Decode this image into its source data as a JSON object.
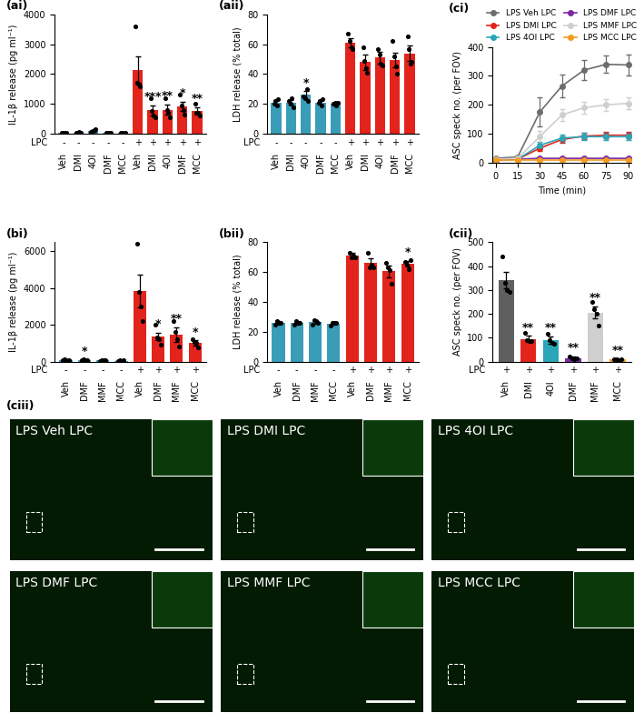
{
  "chart_data": [
    {
      "type": "bar",
      "title": "(ai)",
      "y_label": "IL-1β release (pg ml⁻¹)",
      "categories": [
        "Veh",
        "DMI",
        "4OI",
        "DMF",
        "MCC",
        "Veh",
        "DMI",
        "4OI",
        "DMF",
        "MCC"
      ],
      "row_label": "LPC",
      "row_values": [
        "-",
        "-",
        "-",
        "-",
        "-",
        "+",
        "+",
        "+",
        "+",
        "+"
      ],
      "values": [
        30,
        40,
        100,
        30,
        20,
        2150,
        780,
        800,
        920,
        760
      ],
      "errors": [
        5,
        5,
        25,
        5,
        5,
        450,
        170,
        170,
        160,
        120
      ],
      "points": [
        [
          20,
          30,
          40,
          35
        ],
        [
          30,
          40,
          50,
          45
        ],
        [
          60,
          80,
          120,
          150
        ],
        [
          20,
          30,
          40,
          35
        ],
        [
          20,
          25,
          15,
          30
        ],
        [
          3600,
          1700,
          1650,
          1600
        ],
        [
          1200,
          750,
          600,
          550
        ],
        [
          1200,
          800,
          700,
          550
        ],
        [
          1300,
          950,
          800,
          650
        ],
        [
          1000,
          700,
          700,
          600
        ]
      ],
      "annotations": [
        null,
        null,
        null,
        null,
        null,
        null,
        "***",
        "**",
        "*",
        "**"
      ],
      "colors": [
        "#3a9db8",
        "#3a9db8",
        "#3a9db8",
        "#3a9db8",
        "#3a9db8",
        "#e3241c",
        "#e3241c",
        "#e3241c",
        "#e3241c",
        "#e3241c"
      ],
      "ylim": [
        0,
        4000
      ],
      "yticks": [
        0,
        1000,
        2000,
        3000,
        4000
      ]
    },
    {
      "type": "bar",
      "title": "(aii)",
      "y_label": "LDH release (% total)",
      "categories": [
        "Veh",
        "DMI",
        "4OI",
        "DMF",
        "MCC",
        "Veh",
        "DMI",
        "4OI",
        "DMF",
        "MCC"
      ],
      "row_label": "LPC",
      "row_values": [
        "-",
        "-",
        "-",
        "-",
        "-",
        "+",
        "+",
        "+",
        "+",
        "+"
      ],
      "values": [
        21,
        21,
        26,
        21,
        20,
        61,
        48,
        51,
        49.5,
        54
      ],
      "errors": [
        1.5,
        1.5,
        2.5,
        1.5,
        1,
        3,
        5,
        4,
        5,
        5
      ],
      "points": [
        [
          20,
          22,
          19,
          23
        ],
        [
          22,
          20,
          24,
          18
        ],
        [
          25,
          24,
          30,
          22
        ],
        [
          21,
          22,
          19,
          23
        ],
        [
          20,
          21,
          19,
          21
        ],
        [
          67,
          62,
          58,
          57
        ],
        [
          58,
          49,
          44,
          41
        ],
        [
          57,
          53,
          47,
          46
        ],
        [
          62,
          52,
          45,
          40
        ],
        [
          65,
          57,
          47,
          48
        ]
      ],
      "annotations": [
        null,
        null,
        "*",
        null,
        null,
        null,
        null,
        null,
        null,
        null
      ],
      "colors": [
        "#3a9db8",
        "#3a9db8",
        "#3a9db8",
        "#3a9db8",
        "#3a9db8",
        "#e3241c",
        "#e3241c",
        "#e3241c",
        "#e3241c",
        "#e3241c"
      ],
      "ylim": [
        0,
        80
      ],
      "yticks": [
        0,
        20,
        40,
        60,
        80
      ]
    },
    {
      "type": "line",
      "title": "(ci)",
      "x_label": "Time (min)",
      "y_label": "ASC speck no. (per FOV)",
      "x": [
        0,
        15,
        30,
        45,
        60,
        75,
        90
      ],
      "legend": "top",
      "marker": "o",
      "series": [
        {
          "name": "LPS Veh LPC",
          "color": "#6d6d6d",
          "values": [
            15,
            20,
            175,
            265,
            320,
            340,
            338
          ],
          "errors": [
            5,
            5,
            50,
            40,
            35,
            30,
            35
          ]
        },
        {
          "name": "LPS DMI LPC",
          "color": "#e3241c",
          "values": [
            10,
            12,
            50,
            80,
            92,
            95,
            95
          ],
          "errors": [
            3,
            3,
            10,
            10,
            12,
            12,
            12
          ]
        },
        {
          "name": "LPS 4OI LPC",
          "color": "#2aa6b8",
          "values": [
            10,
            12,
            60,
            85,
            90,
            90,
            90
          ],
          "errors": [
            3,
            3,
            12,
            12,
            12,
            12,
            12
          ]
        },
        {
          "name": "LPS DMF LPC",
          "color": "#7b2aa6",
          "values": [
            10,
            12,
            15,
            15,
            15,
            15,
            15
          ],
          "errors": [
            2,
            2,
            3,
            3,
            3,
            3,
            3
          ]
        },
        {
          "name": "LPS MMF LPC",
          "color": "#cfcfcf",
          "values": [
            12,
            15,
            90,
            165,
            190,
            200,
            205
          ],
          "errors": [
            3,
            3,
            20,
            20,
            20,
            20,
            20
          ]
        },
        {
          "name": "LPS MCC LPC",
          "color": "#f39c20",
          "values": [
            10,
            10,
            10,
            10,
            10,
            10,
            10
          ],
          "errors": [
            2,
            2,
            2,
            2,
            2,
            2,
            2
          ]
        }
      ],
      "xlim": [
        -2,
        92
      ],
      "xticks": [
        0,
        15,
        30,
        45,
        60,
        75,
        90
      ],
      "ylim": [
        0,
        400
      ],
      "yticks": [
        0,
        100,
        200,
        300,
        400
      ]
    },
    {
      "type": "bar",
      "title": "(bi)",
      "y_label": "IL-1β release (pg ml⁻¹)",
      "categories": [
        "Veh",
        "DMF",
        "MMF",
        "MCC",
        "Veh",
        "DMF",
        "MMF",
        "MCC"
      ],
      "row_label": "LPC",
      "row_values": [
        "-",
        "-",
        "-",
        "-",
        "+",
        "+",
        "+",
        "+"
      ],
      "values": [
        80,
        80,
        50,
        40,
        3850,
        1350,
        1450,
        1000
      ],
      "errors": [
        10,
        15,
        8,
        8,
        900,
        200,
        400,
        150
      ],
      "points": [
        [
          50,
          100,
          80,
          90
        ],
        [
          60,
          120,
          80,
          60
        ],
        [
          30,
          60,
          50,
          60
        ],
        [
          20,
          50,
          40,
          50
        ],
        [
          6400,
          3800,
          3000,
          2200
        ],
        [
          2000,
          1300,
          1200,
          900
        ],
        [
          2200,
          1600,
          1200,
          800
        ],
        [
          1200,
          1050,
          1000,
          750
        ]
      ],
      "annotations": [
        null,
        "*",
        null,
        null,
        null,
        "*",
        "**",
        "*"
      ],
      "colors": [
        "#3a9db8",
        "#3a9db8",
        "#3a9db8",
        "#3a9db8",
        "#e3241c",
        "#e3241c",
        "#e3241c",
        "#e3241c"
      ],
      "ylim": [
        0,
        6500
      ],
      "yticks": [
        0,
        2000,
        4000,
        6000
      ]
    },
    {
      "type": "bar",
      "title": "(bii)",
      "y_label": "LDH release (% total)",
      "categories": [
        "Veh",
        "DMF",
        "MMF",
        "MCC",
        "Veh",
        "DMF",
        "MMF",
        "MCC"
      ],
      "row_label": "LPC",
      "row_values": [
        "-",
        "-",
        "-",
        "-",
        "+",
        "+",
        "+",
        "+"
      ],
      "values": [
        26,
        26,
        26.5,
        25.5,
        71,
        66,
        60.5,
        65.5
      ],
      "errors": [
        1,
        1,
        1,
        1,
        2,
        3,
        4,
        2
      ],
      "points": [
        [
          25,
          27,
          26,
          26
        ],
        [
          25,
          27,
          26,
          26
        ],
        [
          25,
          28,
          27,
          26
        ],
        [
          24,
          26,
          26,
          26
        ],
        [
          73,
          70,
          71,
          70
        ],
        [
          73,
          63,
          65,
          63
        ],
        [
          66,
          63,
          61,
          52
        ],
        [
          67,
          65,
          62,
          68
        ]
      ],
      "annotations": [
        null,
        null,
        null,
        null,
        null,
        null,
        null,
        "*"
      ],
      "colors": [
        "#3a9db8",
        "#3a9db8",
        "#3a9db8",
        "#3a9db8",
        "#e3241c",
        "#e3241c",
        "#e3241c",
        "#e3241c"
      ],
      "ylim": [
        0,
        80
      ],
      "yticks": [
        0,
        20,
        40,
        60,
        80
      ]
    },
    {
      "type": "bar",
      "title": "(cii)",
      "y_label": "ASC speck no. (per FOV)",
      "categories": [
        "Veh",
        "DMI",
        "4OI",
        "DMF",
        "MMF",
        "MCC"
      ],
      "row_label": "LPC",
      "row_values": [
        "+",
        "+",
        "+",
        "+",
        "+",
        "+"
      ],
      "values": [
        340,
        95,
        90,
        15,
        205,
        8
      ],
      "errors": [
        35,
        12,
        15,
        5,
        25,
        3
      ],
      "points": [
        [
          440,
          330,
          300,
          290
        ],
        [
          120,
          90,
          85,
          85
        ],
        [
          115,
          90,
          80,
          75
        ],
        [
          20,
          15,
          10,
          15
        ],
        [
          250,
          220,
          200,
          150
        ],
        [
          10,
          8,
          5,
          9
        ]
      ],
      "annotations": [
        null,
        "**",
        "**",
        "**",
        "**",
        "**"
      ],
      "colors": [
        "#5f5f5f",
        "#e3241c",
        "#2aa6b8",
        "#7b2aa6",
        "#cfcfcf",
        "#f39c20"
      ],
      "ylim": [
        0,
        500
      ],
      "yticks": [
        0,
        100,
        200,
        300,
        400,
        500
      ]
    }
  ],
  "images": {
    "title": "(ciii)",
    "labels": [
      "LPS Veh LPC",
      "LPS DMI LPC",
      "LPS 4OI LPC",
      "LPS DMF LPC",
      "LPS MMF LPC",
      "LPS MCC LPC"
    ]
  }
}
